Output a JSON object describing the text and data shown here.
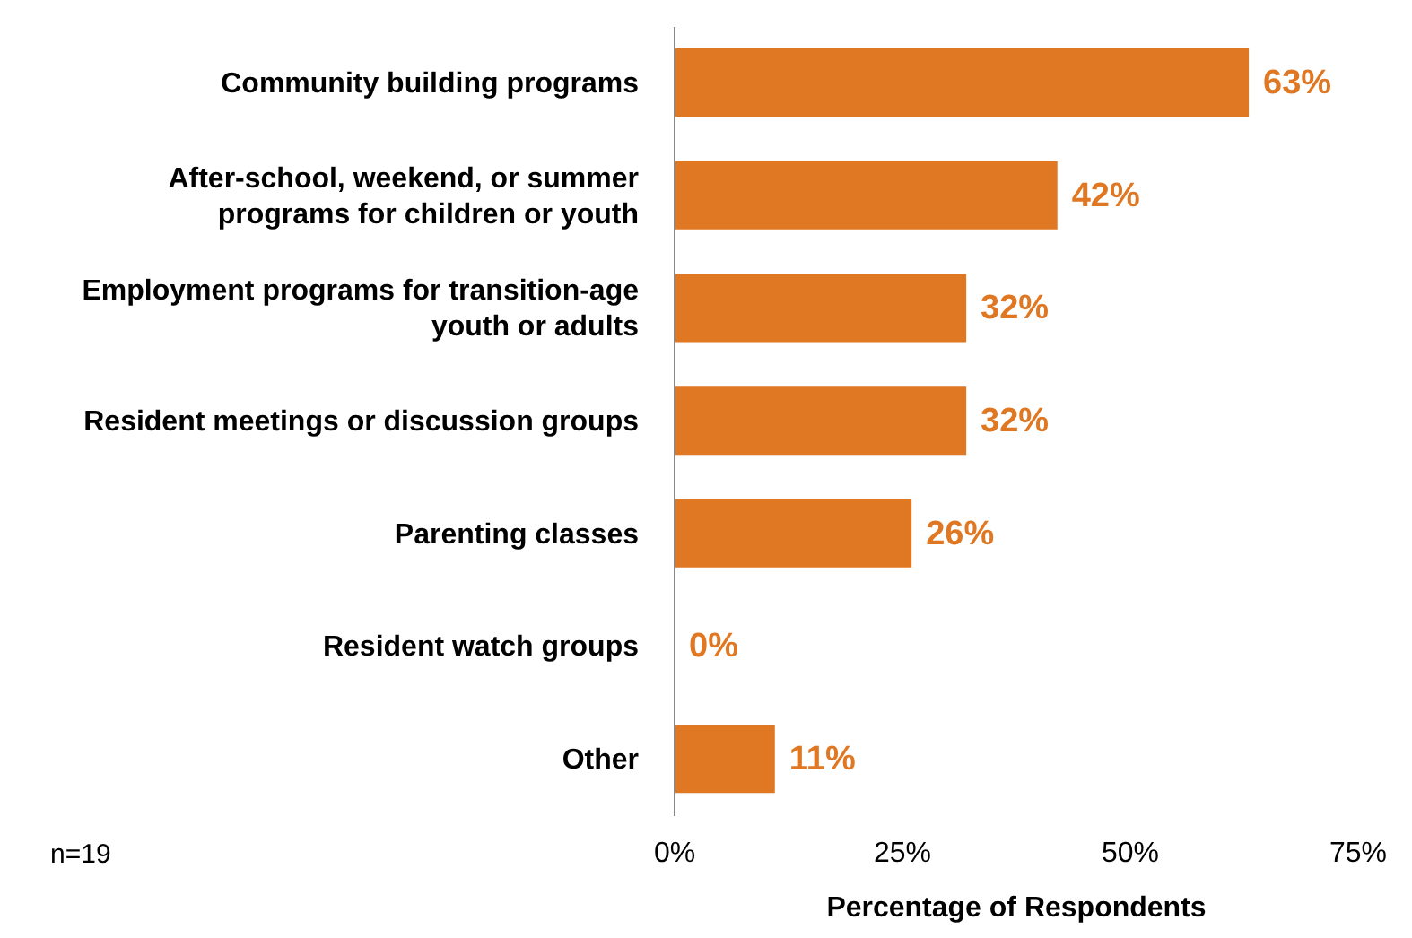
{
  "chart_data": {
    "type": "bar",
    "orientation": "horizontal",
    "xlabel": "Percentage of Respondents",
    "categories": [
      "Community building programs",
      "After-school, weekend, or summer programs for children or youth",
      "Employment programs for transition-age youth or adults",
      "Resident meetings or discussion groups",
      "Parenting classes",
      "Resident watch groups",
      "Other"
    ],
    "values": [
      63,
      42,
      32,
      32,
      26,
      0,
      11
    ],
    "value_labels": [
      "63%",
      "42%",
      "32%",
      "32%",
      "26%",
      "0%",
      "11%"
    ],
    "color": "#e07722",
    "xlim": [
      0,
      75
    ],
    "xticks": [
      {
        "value": 0,
        "label": "0%"
      },
      {
        "value": 25,
        "label": "25%"
      },
      {
        "value": 50,
        "label": "50%"
      },
      {
        "value": 75,
        "label": "75%"
      }
    ],
    "grid": false,
    "annotations": [
      "n=19"
    ]
  }
}
